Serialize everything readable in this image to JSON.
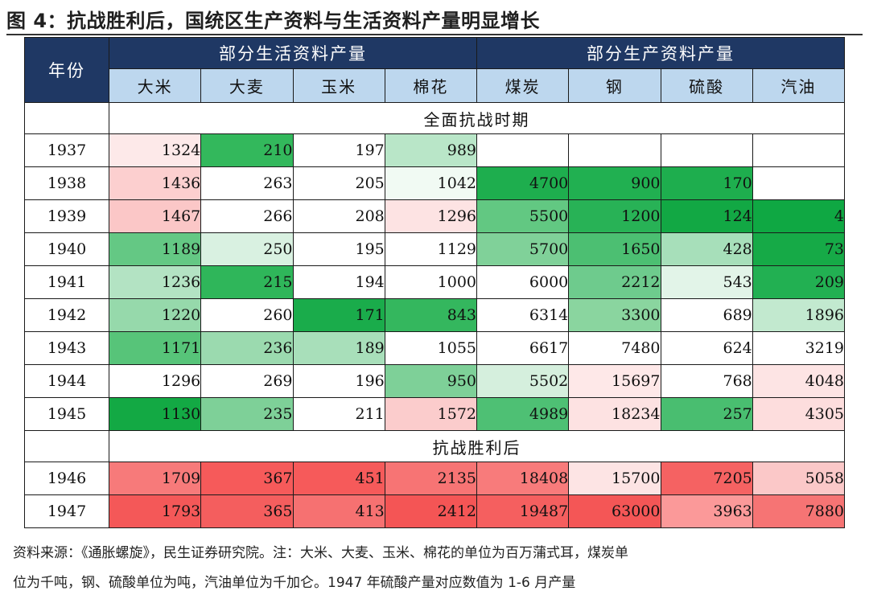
{
  "title": "图 4：抗战胜利后，国统区生产资料与生活资料产量明显增长",
  "table": {
    "year_header": "年份",
    "groups": [
      {
        "label": "部分生活资料产量",
        "span": 4
      },
      {
        "label": "部分生产资料产量",
        "span": 4
      }
    ],
    "items": [
      "大米",
      "大麦",
      "玉米",
      "棉花",
      "煤炭",
      "钢",
      "硫酸",
      "汽油"
    ],
    "sections": [
      {
        "label": "全面抗战时期",
        "rows": [
          {
            "year": "1937",
            "values": [
              "1324",
              "210",
              "197",
              "989",
              "",
              "",
              "",
              ""
            ],
            "colors": [
              "#fde9e9",
              "#33b85c",
              "#ffffff",
              "#b9e6c8",
              "#ffffff",
              "#ffffff",
              "#ffffff",
              "#ffffff"
            ]
          },
          {
            "year": "1938",
            "values": [
              "1436",
              "263",
              "205",
              "1042",
              "4700",
              "900",
              "170",
              ""
            ],
            "colors": [
              "#fccfcf",
              "#ffffff",
              "#ffffff",
              "#f1faf3",
              "#1eae4e",
              "#21b051",
              "#1eae4e",
              "#ffffff"
            ]
          },
          {
            "year": "1939",
            "values": [
              "1467",
              "266",
              "208",
              "1296",
              "5500",
              "1200",
              "124",
              "4"
            ],
            "colors": [
              "#fbc7c7",
              "#ffffff",
              "#ffffff",
              "#fde3e3",
              "#62c882",
              "#28b256",
              "#12a844",
              "#0fa843"
            ]
          },
          {
            "year": "1940",
            "values": [
              "1189",
              "250",
              "195",
              "1129",
              "5700",
              "1650",
              "428",
              "73"
            ],
            "colors": [
              "#64c884",
              "#d9f1e1",
              "#ffffff",
              "#ffffff",
              "#80d199",
              "#4cbf72",
              "#a7dfba",
              "#16aa47"
            ]
          },
          {
            "year": "1941",
            "values": [
              "1236",
              "215",
              "194",
              "1000",
              "6000",
              "2212",
              "543",
              "209"
            ],
            "colors": [
              "#b3e3c3",
              "#2fb65a",
              "#ffffff",
              "#ffffff",
              "#ffffff",
              "#6ecb8d",
              "#e2f4e8",
              "#22b052"
            ]
          },
          {
            "year": "1942",
            "values": [
              "1220",
              "260",
              "171",
              "843",
              "6314",
              "3300",
              "689",
              "1896"
            ],
            "colors": [
              "#96d9ab",
              "#ffffff",
              "#1aac4b",
              "#34b75e",
              "#ffffff",
              "#8ad59f",
              "#ffffff",
              "#c2e9cf"
            ]
          },
          {
            "year": "1943",
            "values": [
              "1171",
              "236",
              "189",
              "1055",
              "6617",
              "7480",
              "624",
              "3219"
            ],
            "colors": [
              "#57c479",
              "#9bdaaf",
              "#a8dfba",
              "#ffffff",
              "#ffffff",
              "#ffffff",
              "#ffffff",
              "#ffffff"
            ]
          },
          {
            "year": "1944",
            "values": [
              "1296",
              "269",
              "196",
              "950",
              "5502",
              "15697",
              "768",
              "4048"
            ],
            "colors": [
              "#ffffff",
              "#ffffff",
              "#ffffff",
              "#7ed098",
              "#d5efdd",
              "#fee8e8",
              "#ffffff",
              "#fde4e4"
            ]
          },
          {
            "year": "1945",
            "values": [
              "1130",
              "235",
              "211",
              "1572",
              "4989",
              "18234",
              "257",
              "4305"
            ],
            "colors": [
              "#13a944",
              "#7ed098",
              "#ffffff",
              "#fbcccc",
              "#4ec074",
              "#fde2e2",
              "#49be70",
              "#fddddd"
            ]
          }
        ]
      },
      {
        "label": "抗战胜利后",
        "rows": [
          {
            "year": "1946",
            "values": [
              "1709",
              "367",
              "451",
              "2135",
              "18408",
              "15700",
              "7205",
              "5058"
            ],
            "colors": [
              "#f77a7a",
              "#f65a5a",
              "#f65a5a",
              "#f77474",
              "#f87b7b",
              "#fde4e4",
              "#f56262",
              "#fbc8c8"
            ]
          },
          {
            "year": "1947",
            "values": [
              "1793",
              "365",
              "413",
              "2412",
              "19487",
              "63000",
              "3963",
              "7880"
            ],
            "colors": [
              "#f45858",
              "#f45e5e",
              "#f67171",
              "#f45555",
              "#f55f5f",
              "#f45656",
              "#fb9999",
              "#f67474"
            ]
          }
        ]
      }
    ]
  },
  "source_line1": "资料来源：《通胀螺旋》，民生证券研究院。注：大米、大麦、玉米、棉花的单位为百万蒲式耳，煤炭单",
  "source_line2": "位为千吨，钢、硫酸单位为吨，汽油单位为千加仑。1947 年硫酸产量对应数值为 1-6 月产量"
}
